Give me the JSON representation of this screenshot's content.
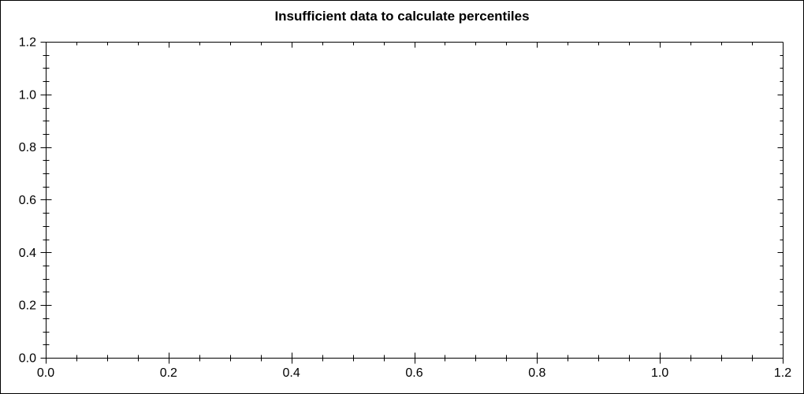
{
  "chart_data": {
    "type": "line",
    "title": "Insufficient data to calculate percentiles",
    "series": [],
    "xlabel": "",
    "ylabel": "",
    "xlim": [
      0.0,
      1.2
    ],
    "ylim": [
      0.0,
      1.2
    ],
    "x_tick_labels": [
      "0.0",
      "0.2",
      "0.4",
      "0.6",
      "0.8",
      "1.0",
      "1.2"
    ],
    "y_tick_labels": [
      "0.0",
      "0.2",
      "0.4",
      "0.6",
      "0.8",
      "1.0",
      "1.2"
    ],
    "x_major_step": 0.2,
    "y_major_step": 0.2,
    "x_minor_step": 0.05,
    "y_minor_step": 0.05,
    "grid": false,
    "legend": false,
    "axis_color": "#000000",
    "text_color": "#000000",
    "background_color": "#ffffff"
  }
}
